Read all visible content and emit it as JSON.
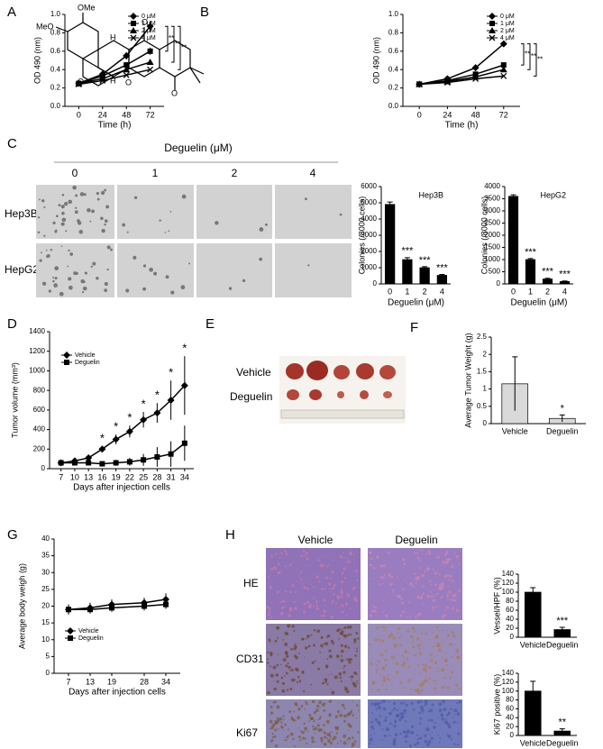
{
  "panel_labels": [
    "A",
    "B",
    "C",
    "D",
    "E",
    "F",
    "G",
    "H"
  ],
  "structure": {
    "labels": [
      "OMe",
      "MeO",
      "H",
      "H",
      "O",
      "O",
      "O",
      "O"
    ]
  },
  "colony_assay": {
    "title": "Deguelin (μM)",
    "doses": [
      "0",
      "1",
      "2",
      "4"
    ],
    "rows": [
      "Hep3B",
      "HepG2"
    ]
  },
  "xenograft_photo": {
    "rows": [
      "Vehicle",
      "Deguelin"
    ]
  },
  "histology": {
    "columns": [
      "Vehicle",
      "Deguelin"
    ],
    "rows": [
      "HE",
      "CD31",
      "Ki67"
    ]
  },
  "chart_data": [
    {
      "type": "line",
      "x_label": "Time (h)",
      "y_label": "OD 490 (nm)",
      "x": [
        0,
        24,
        48,
        72
      ],
      "xlim": [
        -14,
        86
      ],
      "xticks": [
        0,
        24,
        48,
        72
      ],
      "ylim": [
        0,
        1
      ],
      "yticks": [
        {
          "value": 0,
          "label": "0.0"
        },
        0.2,
        0.4,
        0.6,
        0.8,
        {
          "value": 1,
          "label": "1.0"
        }
      ],
      "series": [
        {
          "name": "0 μM",
          "color": "#000000",
          "marker": "diamond",
          "values": [
            0.25,
            0.35,
            0.55,
            0.87
          ],
          "errors": [
            0.01,
            0.03,
            0.04,
            0.06
          ]
        },
        {
          "name": "1 μM",
          "color": "#000000",
          "marker": "square",
          "values": [
            0.25,
            0.33,
            0.45,
            0.6
          ],
          "errors": [
            0.01,
            0.02,
            0.03,
            0.04
          ]
        },
        {
          "name": "2 μM",
          "color": "#000000",
          "marker": "triangle",
          "values": [
            0.25,
            0.3,
            0.4,
            0.48
          ]
        },
        {
          "name": "4 μM",
          "color": "#000000",
          "marker": "x",
          "values": [
            0.24,
            0.28,
            0.34,
            0.4
          ]
        }
      ],
      "annotations": [
        "**",
        "**",
        "**"
      ]
    },
    {
      "type": "line",
      "x_label": "Time (h)",
      "y_label": "OD 490 (nm)",
      "x": [
        0,
        24,
        48,
        72
      ],
      "xlim": [
        -14,
        86
      ],
      "xticks": [
        0,
        24,
        48,
        72
      ],
      "ylim": [
        0,
        1
      ],
      "yticks": [
        {
          "value": 0,
          "label": "0.0"
        },
        0.2,
        0.4,
        0.6,
        0.8,
        {
          "value": 1,
          "label": "1.0"
        }
      ],
      "series": [
        {
          "name": "0 μM",
          "color": "#000000",
          "marker": "diamond",
          "values": [
            0.24,
            0.3,
            0.42,
            0.68
          ],
          "errors": [
            0.01,
            0.02,
            0.02,
            0.03
          ]
        },
        {
          "name": "1 μM",
          "color": "#000000",
          "marker": "square",
          "values": [
            0.24,
            0.28,
            0.35,
            0.45
          ],
          "errors": [
            0.01,
            0.01,
            0.02,
            0.02
          ]
        },
        {
          "name": "2 μM",
          "color": "#000000",
          "marker": "triangle",
          "values": [
            0.24,
            0.27,
            0.32,
            0.4
          ]
        },
        {
          "name": "4 μM",
          "color": "#000000",
          "marker": "x",
          "values": [
            0.24,
            0.26,
            0.3,
            0.33
          ]
        }
      ],
      "annotations": [
        "**",
        "**",
        "**"
      ]
    },
    {
      "type": "bar",
      "title": "Hep3B",
      "x_label": "Deguelin (μM)",
      "y_label": "Colonies (/8000 cells)",
      "categories": [
        "0",
        "1",
        "2",
        "4"
      ],
      "ylim": [
        0,
        6000
      ],
      "yticks": [
        0,
        1000,
        2000,
        3000,
        4000,
        5000,
        6000
      ],
      "series": [
        {
          "color": "#000000",
          "values": [
            4900,
            1500,
            1000,
            530
          ],
          "errors": [
            150,
            120,
            60,
            50
          ],
          "significance": [
            null,
            "***",
            "***",
            "***"
          ]
        }
      ]
    },
    {
      "type": "bar",
      "title": "HepG2",
      "x_label": "Deguelin (μM)",
      "y_label": "Colonies (/8000 cells)",
      "categories": [
        "0",
        "1",
        "2",
        "4"
      ],
      "ylim": [
        0,
        4000
      ],
      "yticks": [
        0,
        500,
        1000,
        1500,
        2000,
        2500,
        3000,
        3500,
        4000
      ],
      "series": [
        {
          "color": "#000000",
          "values": [
            3600,
            1000,
            200,
            100
          ],
          "errors": [
            60,
            40,
            30,
            20
          ],
          "significance": [
            null,
            "***",
            "***",
            "***"
          ]
        }
      ]
    },
    {
      "type": "line",
      "x_label": "Days after injection cells",
      "y_label": "Tumor volume (mm³)",
      "x": [
        7,
        10,
        13,
        16,
        19,
        22,
        25,
        28,
        31,
        34
      ],
      "xlim": [
        4.5,
        36
      ],
      "xticks": [
        7,
        10,
        13,
        16,
        19,
        22,
        25,
        28,
        31,
        34
      ],
      "ylim": [
        0,
        1400
      ],
      "yticks": [
        0,
        200,
        400,
        600,
        800,
        1000,
        1200,
        1400
      ],
      "legend": true,
      "series": [
        {
          "name": "Vehicle",
          "color": "#000000",
          "marker": "diamond",
          "values": [
            60,
            80,
            110,
            200,
            300,
            380,
            500,
            570,
            700,
            850
          ],
          "errors": [
            10,
            15,
            20,
            30,
            50,
            60,
            80,
            100,
            200,
            300
          ],
          "significance": [
            null,
            null,
            null,
            "*",
            "*",
            "*",
            "*",
            "*",
            "*",
            "*"
          ]
        },
        {
          "name": "Deguelin",
          "color": "#000000",
          "marker": "square",
          "values": [
            60,
            60,
            60,
            50,
            60,
            70,
            90,
            120,
            150,
            260
          ],
          "errors": [
            10,
            10,
            15,
            20,
            30,
            40,
            60,
            100,
            130,
            180
          ]
        }
      ]
    },
    {
      "type": "bar",
      "y_label": "Average Tumor Weight (g)",
      "categories": [
        "Vehicle",
        "Deguelin"
      ],
      "ylim": [
        0,
        2.5
      ],
      "yticks": [
        0,
        0.5,
        1,
        1.5,
        2,
        2.5
      ],
      "series": [
        {
          "color": "#d9d9d9",
          "values": [
            1.15,
            0.15
          ],
          "errors": [
            0.78,
            0.1
          ],
          "significance": [
            null,
            "*"
          ]
        }
      ]
    },
    {
      "type": "line",
      "x_label": "Days after injection cells",
      "y_label": "Average body weigh (g)",
      "x": [
        7,
        13,
        19,
        28,
        34
      ],
      "xlim": [
        3,
        38
      ],
      "xticks": [
        7,
        13,
        19,
        28,
        34
      ],
      "ylim": [
        0,
        40
      ],
      "yticks": [
        0,
        5,
        10,
        15,
        20,
        25,
        30,
        35,
        40
      ],
      "legend": true,
      "series": [
        {
          "name": "Vehicle",
          "color": "#000000",
          "marker": "diamond",
          "values": [
            19,
            19.5,
            20.5,
            21,
            22
          ],
          "errors": [
            1.5,
            1.5,
            1.5,
            1.5,
            1.8
          ]
        },
        {
          "name": "Deguelin",
          "color": "#000000",
          "marker": "square",
          "values": [
            19,
            19,
            19.5,
            20,
            20.5
          ],
          "errors": [
            1.2,
            1.2,
            1.2,
            1.3,
            1.3
          ]
        }
      ]
    },
    {
      "type": "bar",
      "y_label": "Vessel/HPF (%)",
      "categories": [
        "Vehicle",
        "Deguelin"
      ],
      "ylim": [
        0,
        140
      ],
      "yticks": [
        0,
        20,
        40,
        60,
        80,
        100,
        120,
        140
      ],
      "series": [
        {
          "color": "#000000",
          "values": [
            100,
            17
          ],
          "errors": [
            10,
            5
          ],
          "significance": [
            null,
            "***"
          ]
        }
      ]
    },
    {
      "type": "bar",
      "y_label": "Ki67 positive (%)",
      "categories": [
        "Vehicle",
        "Deguelin"
      ],
      "ylim": [
        0,
        140
      ],
      "yticks": [
        0,
        20,
        40,
        60,
        80,
        100,
        120,
        140
      ],
      "series": [
        {
          "color": "#000000",
          "values": [
            100,
            10
          ],
          "errors": [
            22,
            5
          ],
          "significance": [
            null,
            "**"
          ]
        }
      ]
    }
  ]
}
